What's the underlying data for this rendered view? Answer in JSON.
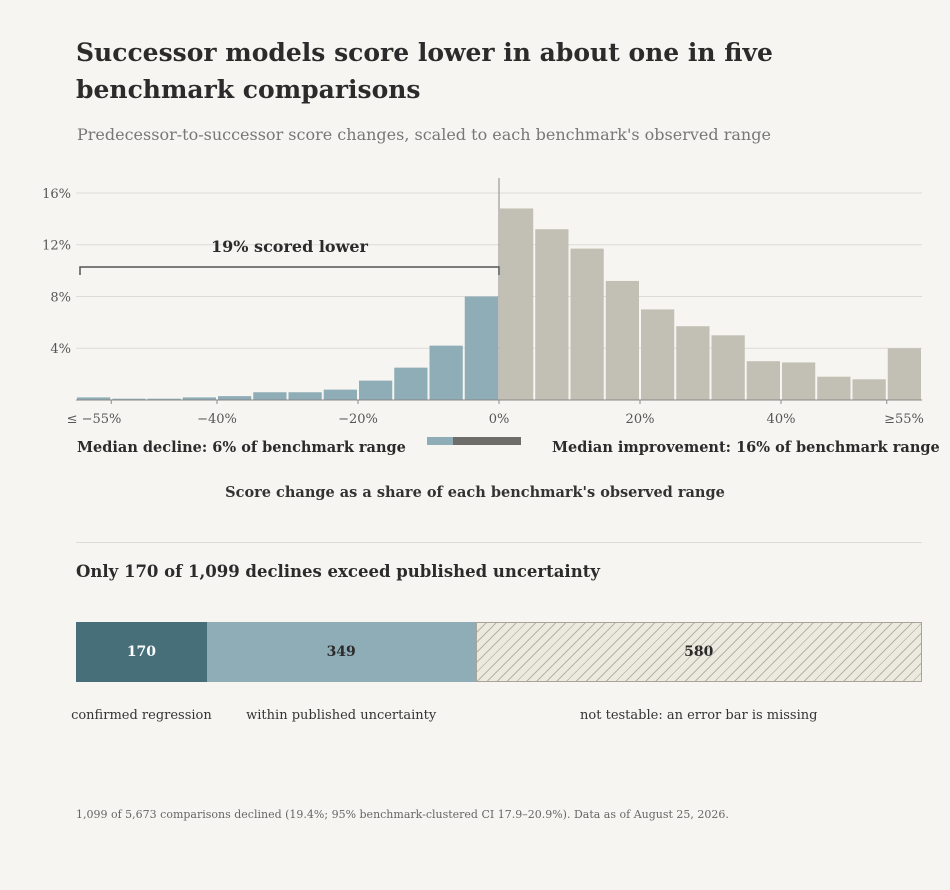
{
  "header": {
    "title": "Successor models score lower in about one in five benchmark comparisons",
    "subtitle": "Predecessor-to-successor score changes, scaled to each benchmark's observed range"
  },
  "colors": {
    "decline": "#8fadb7",
    "improvement": "#c2c0b4",
    "confirmed": "#466f7a",
    "median_improvement_marker": "#6e6d69",
    "grid": "#dddbd5",
    "axis": "#888888"
  },
  "chart_data": {
    "type": "bar",
    "xlabel": "Score change as a share of each benchmark's observed range",
    "ylabel": "",
    "ylim": [
      0,
      17
    ],
    "yticks": [
      4,
      8,
      12,
      16
    ],
    "ytick_labels": [
      "4%",
      "8%",
      "12%",
      "16%"
    ],
    "xticks": [
      -55,
      -40,
      -20,
      0,
      20,
      40,
      55
    ],
    "xtick_labels": [
      "≤ −55%",
      "−40%",
      "−20%",
      "0%",
      "20%",
      "40%",
      "≥55%"
    ],
    "bin_width": 5,
    "bin_starts": [
      -60,
      -55,
      -50,
      -45,
      -40,
      -35,
      -30,
      -25,
      -20,
      -15,
      -10,
      -5,
      0,
      5,
      10,
      15,
      20,
      25,
      30,
      35,
      40,
      45,
      50,
      55
    ],
    "values": [
      0.2,
      0.1,
      0.1,
      0.2,
      0.3,
      0.6,
      0.6,
      0.8,
      1.5,
      2.5,
      4.2,
      8.0,
      14.8,
      13.2,
      11.7,
      9.2,
      7.0,
      5.7,
      5.0,
      3.0,
      2.9,
      1.8,
      1.6,
      4.0
    ],
    "grid": true,
    "annotation": {
      "label": "19% scored lower",
      "x_start": -60,
      "x_end": 0
    },
    "median_decline": -6,
    "median_improvement": 16
  },
  "medians": {
    "decline_label": "Median decline: 6% of benchmark range",
    "improvement_label": "Median improvement: 16% of benchmark range",
    "decline_value": 6,
    "improvement_value": 16
  },
  "breakdown": {
    "title": "Only 170 of 1,099 declines exceed published uncertainty",
    "segments": [
      {
        "value": 170,
        "display": "170",
        "label": "confirmed regression"
      },
      {
        "value": 349,
        "display": "349",
        "label": "within published uncertainty"
      },
      {
        "value": 580,
        "display": "580",
        "label": "not testable: an error bar is missing"
      }
    ]
  },
  "footnote": "1,099 of 5,673 comparisons declined (19.4%; 95% benchmark-clustered CI 17.9–20.9%). Data as of August 25, 2026."
}
